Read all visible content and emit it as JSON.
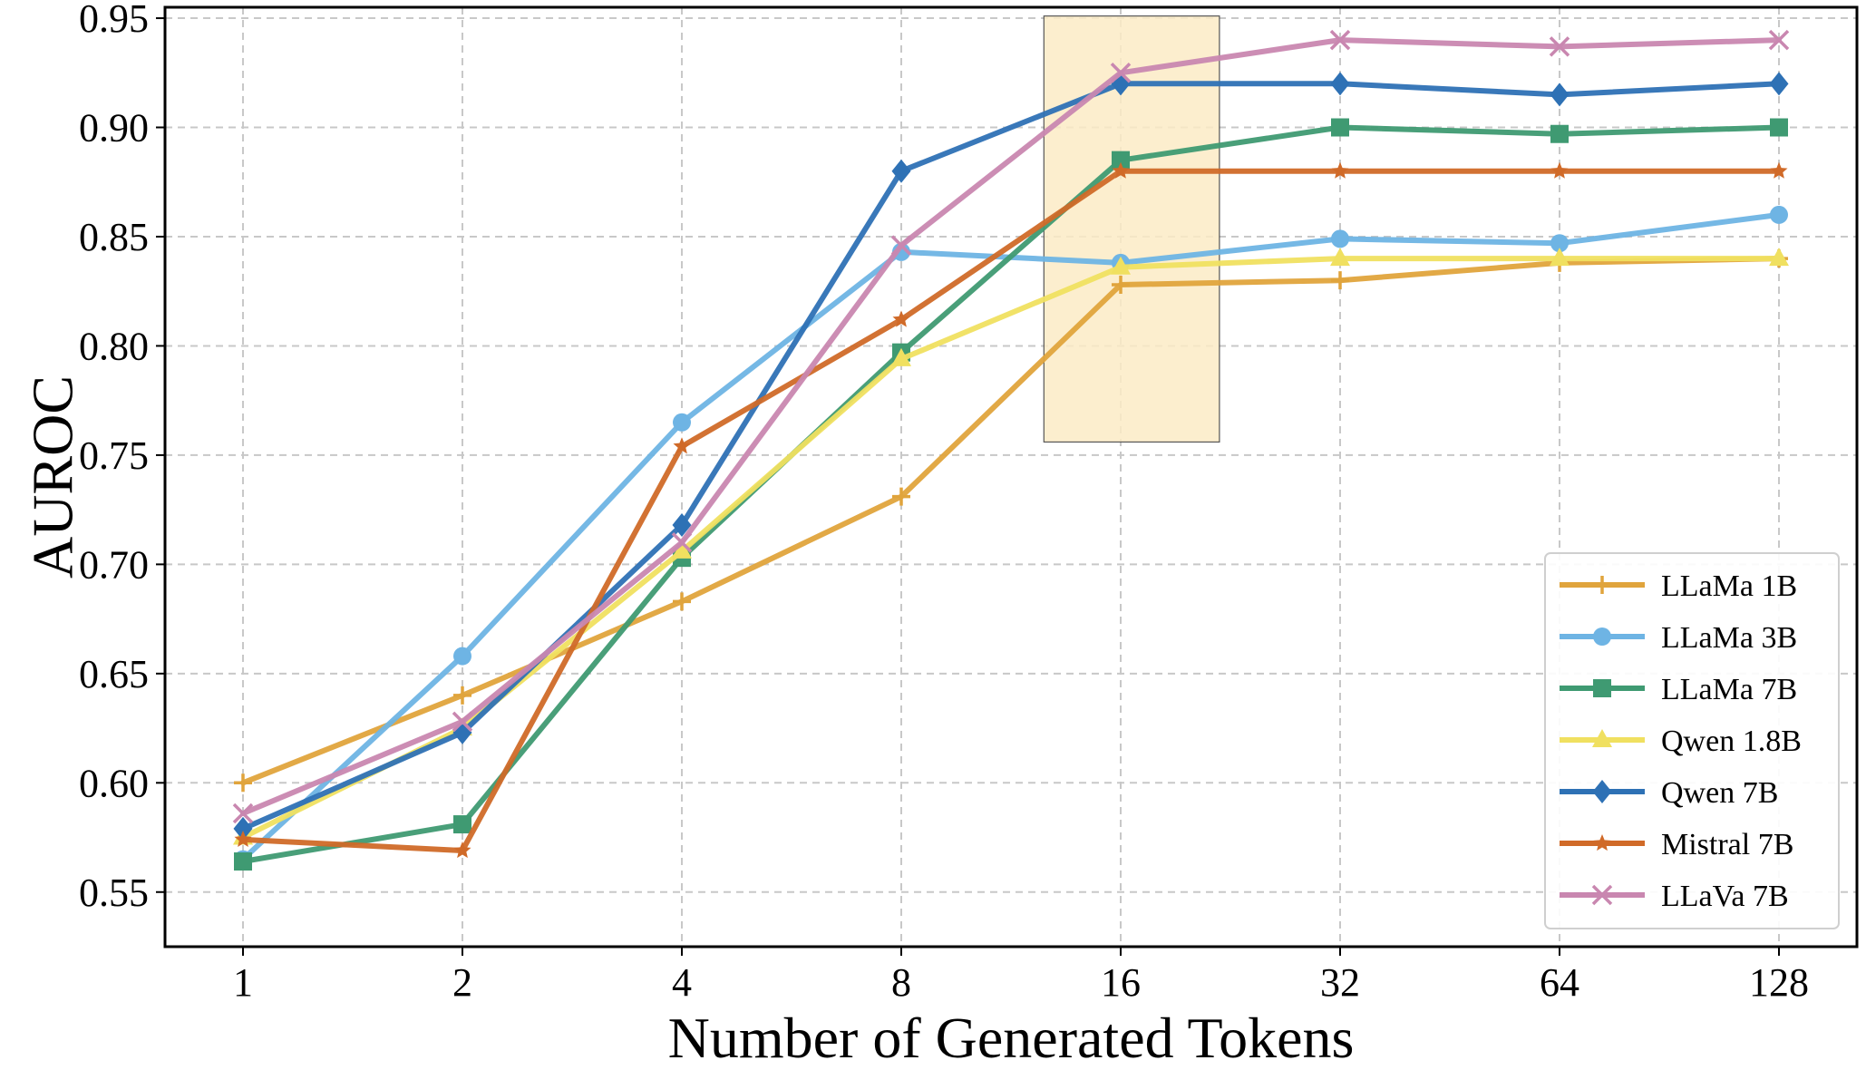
{
  "chart_data": {
    "type": "line",
    "xlabel": "Number of Generated Tokens",
    "ylabel": "AUROC",
    "categories": [
      "1",
      "2",
      "4",
      "8",
      "16",
      "32",
      "64",
      "128"
    ],
    "ylim": [
      0.525,
      0.955
    ],
    "yticks": [
      0.55,
      0.6,
      0.65,
      0.7,
      0.75,
      0.8,
      0.85,
      0.9,
      0.95
    ],
    "ytick_labels": [
      "0.55",
      "0.60",
      "0.65",
      "0.70",
      "0.75",
      "0.80",
      "0.85",
      "0.90",
      "0.95"
    ],
    "grid": true,
    "legend_position": "lower-right",
    "highlight": {
      "x_from": 3.65,
      "x_to": 4.45,
      "y_from": 0.756,
      "y_to": 0.951,
      "color": "#fcebc6"
    },
    "series": [
      {
        "name": "LLaMa 1B",
        "color": "#e0a43c",
        "marker": "plus",
        "values": [
          0.6,
          0.64,
          0.683,
          0.731,
          0.828,
          0.83,
          0.838,
          0.84
        ]
      },
      {
        "name": "LLaMa 3B",
        "color": "#6eb4e4",
        "marker": "circle",
        "values": [
          0.565,
          0.658,
          0.765,
          0.843,
          0.838,
          0.849,
          0.847,
          0.86
        ]
      },
      {
        "name": "LLaMa 7B",
        "color": "#3f9a72",
        "marker": "square",
        "values": [
          0.564,
          0.581,
          0.703,
          0.797,
          0.885,
          0.9,
          0.897,
          0.9
        ]
      },
      {
        "name": "Qwen 1.8B",
        "color": "#f0e060",
        "marker": "triangle",
        "values": [
          0.575,
          0.625,
          0.706,
          0.794,
          0.836,
          0.84,
          0.84,
          0.84
        ]
      },
      {
        "name": "Qwen 7B",
        "color": "#2e71b5",
        "marker": "diamond",
        "values": [
          0.579,
          0.623,
          0.718,
          0.88,
          0.92,
          0.92,
          0.915,
          0.92
        ]
      },
      {
        "name": "Mistral 7B",
        "color": "#d06a28",
        "marker": "star",
        "values": [
          0.574,
          0.569,
          0.754,
          0.812,
          0.88,
          0.88,
          0.88,
          0.88
        ]
      },
      {
        "name": "LLaVa 7B",
        "color": "#c987b0",
        "marker": "x",
        "values": [
          0.586,
          0.628,
          0.71,
          0.846,
          0.925,
          0.94,
          0.937,
          0.94
        ]
      }
    ]
  }
}
